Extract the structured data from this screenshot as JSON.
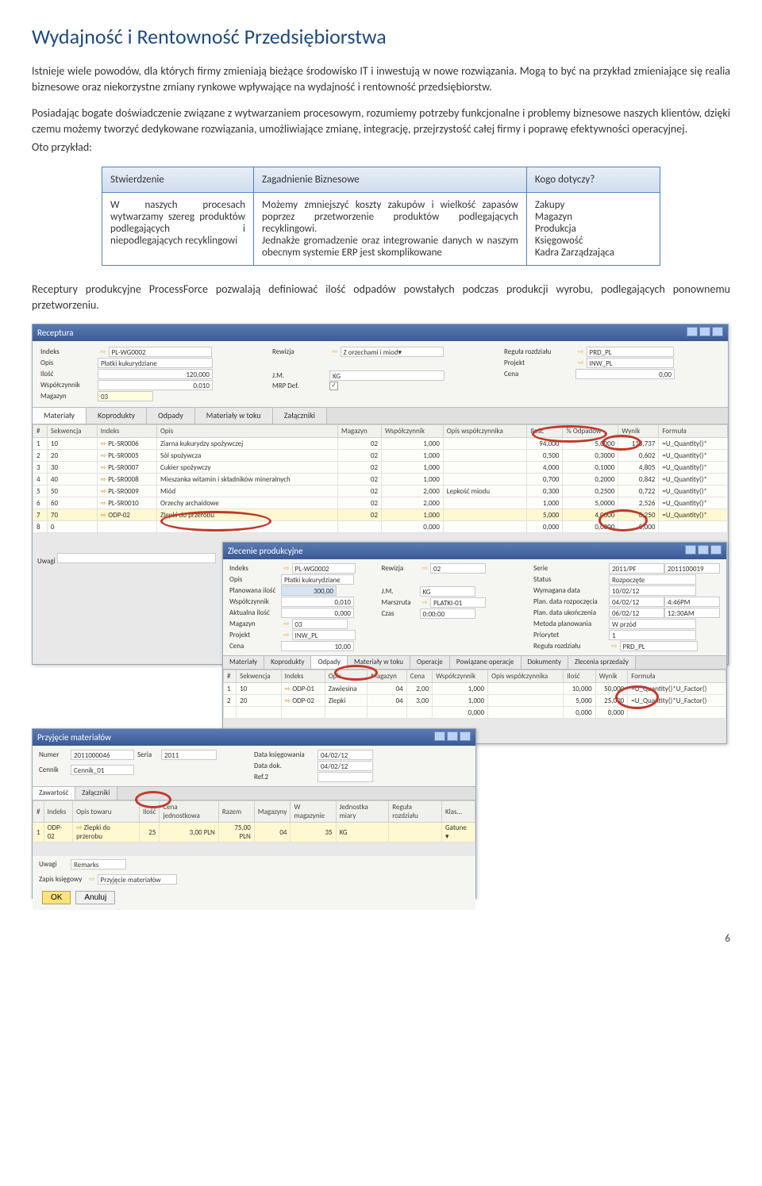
{
  "page": {
    "title": "Wydajność i Rentowność Przedsiębiorstwa",
    "p1": "Istnieje wiele powodów, dla których firmy zmieniają bieżące środowisko IT i inwestują w nowe rozwiązania. Mogą  to być na przykład zmieniające się realia biznesowe oraz niekorzystne zmiany rynkowe wpływające na wydajność i rentowność przedsiębiorstw.",
    "p2": "Posiadając bogate doświadczenie związane z wytwarzaniem procesowym, rozumiemy potrzeby funkcjonalne i problemy  biznesowe naszych klientów, dzięki czemu możemy tworzyć dedykowane rozwiązania, umożliwiające zmianę, integrację, przejrzystość całej firmy i poprawę efektywności operacyjnej.",
    "p2b": "Oto przykład:",
    "p3": "Receptury produkcyjne ProcessForce pozwalają definiować ilość  odpadów powstałych podczas produkcji wyrobu, podlegających ponownemu przetworzeniu.",
    "page_number": "6"
  },
  "btable": {
    "h1": "Stwierdzenie",
    "h2": "Zagadnienie  Biznesowe",
    "h3": "Kogo dotyczy?",
    "c1": "W naszych procesach wytwarzamy szereg produktów podlegających i niepodlegających recyklingowi",
    "c2": "Możemy zmniejszyć koszty zakupów i wielkość zapasów poprzez przetworzenie produktów podlegających recyklingowi.\nJednakże gromadzenie oraz integrowanie danych w naszym obecnym systemie ERP jest skomplikowane",
    "c3": "Zakupy\nMagazyn\nProdukcja\nKsięgowość\nKadra Zarządzająca"
  },
  "receptura": {
    "title": "Receptura",
    "fields": {
      "indeks_l": "Indeks",
      "indeks_v": "PL-WG0002",
      "opis_l": "Opis",
      "opis_v": "Płatki kukurydziane",
      "ilosc_l": "Ilość",
      "ilosc_v": "120,000",
      "wsp_l": "Współczynnik",
      "wsp_v": "0,010",
      "mag_l": "Magazyn",
      "mag_v": "03",
      "rew_l": "Rewizja",
      "rew_v": "Z orzechami i miod▾",
      "jm_l": "J.M.",
      "jm_v": "KG",
      "mrp_l": "MRP Def.",
      "regula_l": "Reguła rozdziału",
      "regula_v": "PRD_PL",
      "projekt_l": "Projekt",
      "projekt_v": "INW_PL",
      "cena_l": "Cena",
      "cena_v": "0,00"
    },
    "tabs": [
      "Materiały",
      "Koprodukty",
      "Odpady",
      "Materiały w toku",
      "Załączniki"
    ],
    "grid": {
      "cols": [
        "#",
        "Sekwencja",
        "Indeks",
        "Opis",
        "Magazyn",
        "Współczynnik",
        "Opis współczynnika",
        "Ilość",
        "% Odpadów",
        "Wynik",
        "Formuła"
      ],
      "rows": [
        [
          "1",
          "10",
          "PL-SR0006",
          "Ziarna kukurydzy spożywczej",
          "02",
          "1,000",
          "",
          "94,000",
          "5,0000",
          "118,737",
          "=U_Quantity()*"
        ],
        [
          "2",
          "20",
          "PL-SR0005",
          "Sól spożywcza",
          "02",
          "1,000",
          "",
          "0,500",
          "0,3000",
          "0,602",
          "=U_Quantity()*"
        ],
        [
          "3",
          "30",
          "PL-SR0007",
          "Cukier spożywczy",
          "02",
          "1,000",
          "",
          "4,000",
          "0,1000",
          "4,805",
          "=U_Quantity()*"
        ],
        [
          "4",
          "40",
          "PL-SR0008",
          "Mieszanka witamin i składników mineralnych",
          "02",
          "1,000",
          "",
          "0,700",
          "0,2000",
          "0,842",
          "=U_Quantity()*"
        ],
        [
          "5",
          "50",
          "PL-SR0009",
          "Miód",
          "02",
          "2,000",
          "Lepkość miodu",
          "0,300",
          "0,2500",
          "0,722",
          "=U_Quantity()*"
        ],
        [
          "6",
          "60",
          "PL-SR0010",
          "Orzechy archaidowe",
          "02",
          "2,000",
          "",
          "1,000",
          "5,0000",
          "2,526",
          "=U_Quantity()*"
        ],
        [
          "7",
          "70",
          "ODP-02",
          "Zlepki do przerobu",
          "02",
          "1,000",
          "",
          "5,000",
          "4,0000",
          "6,250",
          "=U_Quantity()*"
        ],
        [
          "8",
          "0",
          "",
          "",
          "",
          "0,000",
          "",
          "0,000",
          "0,0000",
          "0,000",
          ""
        ]
      ]
    },
    "uwagi_l": "Uwagi"
  },
  "zlecenie": {
    "title": "Zlecenie produkcyjne",
    "fields": {
      "indeks_l": "Indeks",
      "indeks_v": "PL-WG0002",
      "rew_l": "Rewizja",
      "rew_v": "02",
      "serie_l": "Serie",
      "serie_v": "2011/PF",
      "serie_n": "2011100019",
      "opis_l": "Opis",
      "opis_v": "Płatki kukurydziane",
      "status_l": "Status",
      "status_v": "Rozpoczęte",
      "plan_l": "Planowana ilość",
      "plan_v": "300,00",
      "jm_l": "J.M.",
      "jm_v": "KG",
      "wym_l": "Wymagana data",
      "wym_v": "10/02/12",
      "wsp_l": "Współczynnik",
      "wsp_v": "0,010",
      "mar_l": "Marszruta",
      "mar_v": "PLATKI-01",
      "pdr_l": "Plan. data rozpoczęcia",
      "pdr_v": "04/02/12",
      "pdr_t": "4:46PM",
      "akt_l": "Aktualna ilość",
      "akt_v": "0,000",
      "czas_l": "Czas",
      "czas_v": "0:00:00",
      "pdu_l": "Plan. data ukończenia",
      "pdu_v": "06/02/12",
      "pdu_t": "12:30AM",
      "mag_l": "Magazyn",
      "mag_v": "03",
      "met_l": "Metoda planowania",
      "met_v": "W przód",
      "proj_l": "Projekt",
      "proj_v": "INW_PL",
      "prio_l": "Priorytet",
      "prio_v": "1",
      "cena_l": "Cena",
      "cena_v": "10,00",
      "reg_l": "Reguła rozdziału",
      "reg_v": "PRD_PL"
    },
    "tabs": [
      "Materiały",
      "Koprodukty",
      "Odpady",
      "Materiały w toku",
      "Operacje",
      "Powiązane operacje",
      "Dokumenty",
      "Zlecenia sprzedaży"
    ],
    "grid": {
      "cols": [
        "#",
        "Sekwencja",
        "Indeks",
        "Opis",
        "Magazyn",
        "Cena",
        "Współczynnik",
        "Opis współczynnika",
        "Ilość",
        "Wynik",
        "Formuła"
      ],
      "rows": [
        [
          "1",
          "10",
          "ODP-01",
          "Zawiesina",
          "04",
          "2,00",
          "1,000",
          "",
          "10,000",
          "50,000",
          "=U_Quantity()*U_Factor()"
        ],
        [
          "2",
          "20",
          "ODP-02",
          "Zlepki",
          "04",
          "3,00",
          "1,000",
          "",
          "5,000",
          "25,000",
          "=U_Quantity()*U_Factor()"
        ],
        [
          "",
          "",
          "",
          "",
          "",
          "",
          "0,000",
          "",
          "0,000",
          "0,000",
          ""
        ]
      ]
    }
  },
  "przyjecie": {
    "title": "Przyjęcie materiałów",
    "numer_l": "Numer",
    "numer_v": "2011000046",
    "seria_l": "Seria",
    "seria_v": "2011",
    "cennik_l": "Cennik",
    "cennik_v": "Cennik_01",
    "datak_l": "Data księgowania",
    "datak_v": "04/02/12",
    "datad_l": "Data dok.",
    "datad_v": "04/02/12",
    "ref_l": "Ref.2",
    "tabs": [
      "Zawartość",
      "Załączniki"
    ],
    "grid": {
      "cols": [
        "#",
        "Indeks",
        "Opis towaru",
        "Ilość",
        "Cena jednostkowa",
        "Razem",
        "Magazyny",
        "W magazynie",
        "Jednostka miary",
        "Reguła rozdziału",
        "Klas..."
      ],
      "rows": [
        [
          "1",
          "ODP-02",
          "Zlepki do przerobu",
          "25",
          "3,00 PLN",
          "75,00 PLN",
          "04",
          "35",
          "KG",
          "",
          "Gatune ▾"
        ]
      ]
    },
    "uwagi_l": "Uwagi",
    "remarks_l": "Remarks",
    "zapis_l": "Zapis księgowy",
    "zapis_v": "Przyjęcie materiałów",
    "ok": "OK",
    "anuluj": "Anuluj"
  }
}
